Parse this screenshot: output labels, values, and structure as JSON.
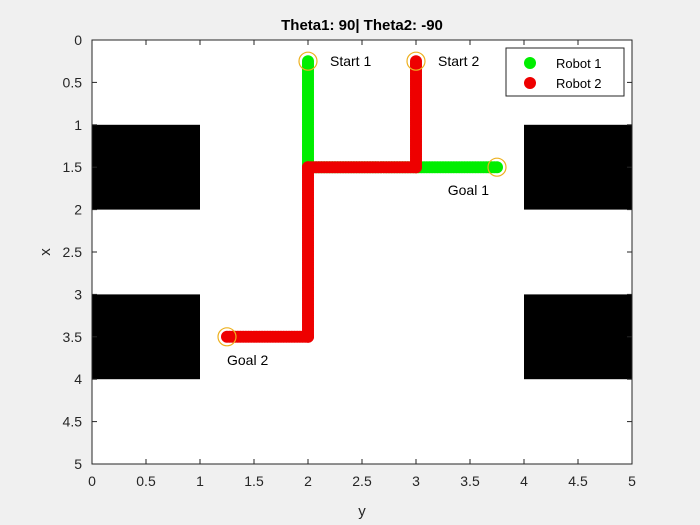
{
  "chart_data": {
    "type": "scatter",
    "title": "Theta1: 90| Theta2: -90",
    "xlabel": "y",
    "ylabel": "x",
    "xlim": [
      0,
      5
    ],
    "ylim": [
      0,
      5
    ],
    "y_reversed": true,
    "grid": false,
    "legend_position": "top-right",
    "x_ticks": [
      "0",
      "0.5",
      "1",
      "1.5",
      "2",
      "2.5",
      "3",
      "3.5",
      "4",
      "4.5",
      "5"
    ],
    "y_ticks": [
      "0",
      "0.5",
      "1",
      "1.5",
      "2",
      "2.5",
      "3",
      "3.5",
      "4",
      "4.5",
      "5"
    ],
    "obstacles": [
      {
        "y_range": [
          0,
          1
        ],
        "x_range": [
          1,
          2
        ]
      },
      {
        "y_range": [
          0,
          1
        ],
        "x_range": [
          3,
          4
        ]
      },
      {
        "y_range": [
          4,
          5
        ],
        "x_range": [
          1,
          2
        ]
      },
      {
        "y_range": [
          4,
          5
        ],
        "x_range": [
          3,
          4
        ]
      }
    ],
    "obstacle_color": "#000000",
    "series": [
      {
        "name": "Robot 1",
        "color": "#00ee00",
        "path": [
          [
            2,
            0.25
          ],
          [
            2,
            1.5
          ],
          [
            3.75,
            1.5
          ]
        ]
      },
      {
        "name": "Robot 2",
        "color": "#ee0000",
        "path": [
          [
            3,
            0.25
          ],
          [
            3,
            1.5
          ],
          [
            2,
            1.5
          ],
          [
            2,
            3.5
          ],
          [
            1.25,
            3.5
          ]
        ]
      }
    ],
    "markers": [
      {
        "label": "Start 1",
        "y": 2,
        "x": 0.25,
        "label_side": "right"
      },
      {
        "label": "Start 2",
        "y": 3,
        "x": 0.25,
        "label_side": "right"
      },
      {
        "label": "Goal 1",
        "y": 3.75,
        "x": 1.5,
        "label_side": "below-left"
      },
      {
        "label": "Goal 2",
        "y": 1.25,
        "x": 3.5,
        "label_side": "below"
      }
    ],
    "marker_color": "#edb120"
  }
}
